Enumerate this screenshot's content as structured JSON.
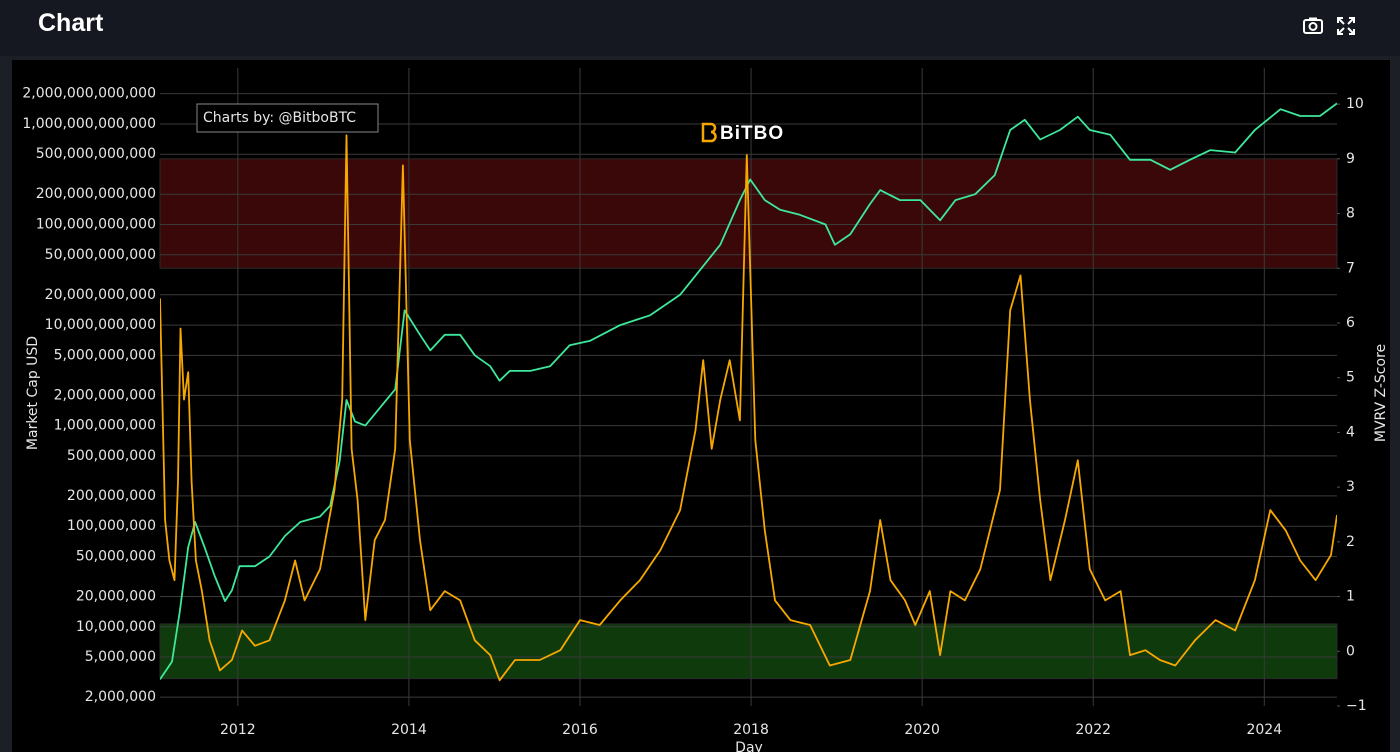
{
  "chart_data": {
    "type": "line",
    "title": "Chart",
    "xlabel": "Day",
    "ylabel": "Market Cap USD",
    "y2label": "MVRV Z-Score",
    "annotation": "Charts by: @BitboBTC",
    "watermark": "BiTBO",
    "log_y": true,
    "grid": true,
    "xlim": [
      2011.09,
      2024.85
    ],
    "xticks": [
      2012,
      2014,
      2016,
      2018,
      2020,
      2022,
      2024
    ],
    "ylim": [
      1630000,
      3600000000000
    ],
    "yticks": [
      {
        "value": 2000000,
        "label": "2,000,000"
      },
      {
        "value": 5000000,
        "label": "5,000,000"
      },
      {
        "value": 10000000,
        "label": "10,000,000"
      },
      {
        "value": 20000000,
        "label": "20,000,000"
      },
      {
        "value": 50000000,
        "label": "50,000,000"
      },
      {
        "value": 100000000,
        "label": "100,000,000"
      },
      {
        "value": 200000000,
        "label": "200,000,000"
      },
      {
        "value": 500000000,
        "label": "500,000,000"
      },
      {
        "value": 1000000000,
        "label": "1,000,000,000"
      },
      {
        "value": 2000000000,
        "label": "2,000,000,000"
      },
      {
        "value": 5000000000,
        "label": "5,000,000,000"
      },
      {
        "value": 10000000000,
        "label": "10,000,000,000"
      },
      {
        "value": 20000000000,
        "label": "20,000,000,000"
      },
      {
        "value": 50000000000,
        "label": "50,000,000,000"
      },
      {
        "value": 100000000000,
        "label": "100,000,000,000"
      },
      {
        "value": 200000000000,
        "label": "200,000,000,000"
      },
      {
        "value": 500000000000,
        "label": "500,000,000,000"
      },
      {
        "value": 1000000000000,
        "label": "1,000,000,000,000"
      },
      {
        "value": 2000000000000,
        "label": "2,000,000,000,000"
      }
    ],
    "y2lim": [
      -1,
      10.66
    ],
    "y2ticks": [
      {
        "value": -1,
        "label": "−1"
      },
      0,
      1,
      2,
      3,
      4,
      5,
      6,
      7,
      8,
      9,
      10
    ],
    "bands": [
      {
        "axis": "y2",
        "range": [
          7,
          9
        ],
        "color": "#3a0808"
      },
      {
        "axis": "y2",
        "range": [
          -0.5,
          0.5
        ],
        "color": "#0e3a0c"
      }
    ],
    "series": [
      {
        "color": "#3ee89a",
        "x": [
          2011.09,
          2011.23,
          2011.32,
          2011.42,
          2011.5,
          2011.61,
          2011.73,
          2011.85,
          2011.93,
          2012.02,
          2012.2,
          2012.37,
          2012.55,
          2012.73,
          2012.96,
          2013.08,
          2013.19,
          2013.27,
          2013.37,
          2013.49,
          2013.66,
          2013.84,
          2013.95,
          2014.13,
          2014.25,
          2014.42,
          2014.6,
          2014.77,
          2014.95,
          2015.06,
          2015.18,
          2015.42,
          2015.65,
          2015.88,
          2016.12,
          2016.47,
          2016.82,
          2017.17,
          2017.4,
          2017.64,
          2017.87,
          2017.99,
          2018.16,
          2018.34,
          2018.57,
          2018.87,
          2018.98,
          2019.16,
          2019.39,
          2019.51,
          2019.74,
          2019.98,
          2020.21,
          2020.39,
          2020.62,
          2020.85,
          2021.03,
          2021.2,
          2021.38,
          2021.61,
          2021.82,
          2021.96,
          2022.2,
          2022.43,
          2022.67,
          2022.9,
          2023.13,
          2023.37,
          2023.66,
          2023.89,
          2024.19,
          2024.42,
          2024.65,
          2024.85
        ],
        "values": [
          3000000,
          4500000,
          14000000,
          62000000,
          110000000,
          62000000,
          32000000,
          18000000,
          23000000,
          40000000,
          40000000,
          50000000,
          80000000,
          110000000,
          125000000,
          160000000,
          440000000,
          1800000000,
          1100000000,
          1000000000,
          1500000000,
          2300000000,
          14000000000,
          8000000000,
          5600000000,
          8000000000,
          8000000000,
          5000000000,
          3900000000,
          2800000000,
          3500000000,
          3500000000,
          3900000000,
          6300000000,
          7000000000,
          10000000000,
          12500000000,
          20000000000,
          35000000000,
          63000000000,
          175000000000,
          280000000000,
          175000000000,
          140000000000,
          125000000000,
          100000000000,
          63000000000,
          80000000000,
          160000000000,
          220000000000,
          175000000000,
          175000000000,
          110000000000,
          175000000000,
          200000000000,
          310000000000,
          870000000000,
          1100000000000,
          700000000000,
          870000000000,
          1180000000000,
          870000000000,
          780000000000,
          440000000000,
          440000000000,
          350000000000,
          440000000000,
          550000000000,
          520000000000,
          870000000000,
          1400000000000,
          1200000000000,
          1200000000000,
          1600000000000
        ]
      },
      {
        "color": "#f7a800",
        "axis": "y2",
        "x": [
          2011.09,
          2011.15,
          2011.2,
          2011.26,
          2011.3,
          2011.33,
          2011.37,
          2011.42,
          2011.46,
          2011.51,
          2011.58,
          2011.67,
          2011.79,
          2011.93,
          2012.05,
          2012.2,
          2012.37,
          2012.55,
          2012.67,
          2012.78,
          2012.96,
          2013.13,
          2013.22,
          2013.27,
          2013.33,
          2013.4,
          2013.49,
          2013.6,
          2013.72,
          2013.84,
          2013.93,
          2014.01,
          2014.13,
          2014.25,
          2014.42,
          2014.6,
          2014.77,
          2014.95,
          2015.06,
          2015.24,
          2015.53,
          2015.77,
          2016.0,
          2016.23,
          2016.47,
          2016.7,
          2016.94,
          2017.17,
          2017.35,
          2017.44,
          2017.54,
          2017.64,
          2017.75,
          2017.87,
          2017.95,
          2018.05,
          2018.16,
          2018.28,
          2018.46,
          2018.69,
          2018.92,
          2019.16,
          2019.39,
          2019.51,
          2019.63,
          2019.8,
          2019.92,
          2020.09,
          2020.21,
          2020.33,
          2020.5,
          2020.68,
          2020.91,
          2021.03,
          2021.15,
          2021.26,
          2021.38,
          2021.5,
          2021.67,
          2021.82,
          2021.96,
          2022.14,
          2022.32,
          2022.43,
          2022.61,
          2022.78,
          2022.96,
          2023.19,
          2023.43,
          2023.66,
          2023.89,
          2024.07,
          2024.25,
          2024.42,
          2024.6,
          2024.78,
          2024.85
        ],
        "values": [
          6.45,
          2.4,
          1.66,
          1.3,
          3.1,
          5.9,
          4.6,
          5.1,
          3.1,
          1.66,
          1.1,
          0.2,
          -0.35,
          -0.16,
          0.38,
          0.1,
          0.2,
          0.93,
          1.66,
          0.93,
          1.5,
          2.95,
          4.6,
          9.43,
          3.7,
          2.76,
          0.57,
          2.03,
          2.4,
          3.7,
          8.88,
          3.86,
          2.03,
          0.75,
          1.1,
          0.93,
          0.2,
          -0.07,
          -0.53,
          -0.16,
          -0.16,
          0.02,
          0.57,
          0.48,
          0.93,
          1.3,
          1.85,
          2.58,
          4.04,
          5.32,
          3.7,
          4.6,
          5.32,
          4.22,
          9.07,
          3.86,
          2.21,
          0.93,
          0.57,
          0.48,
          -0.26,
          -0.16,
          1.1,
          2.4,
          1.3,
          0.93,
          0.48,
          1.1,
          -0.07,
          1.1,
          0.93,
          1.5,
          2.95,
          6.23,
          6.87,
          4.6,
          2.76,
          1.3,
          2.4,
          3.49,
          1.5,
          0.93,
          1.1,
          -0.07,
          0.02,
          -0.16,
          -0.26,
          0.2,
          0.57,
          0.38,
          1.3,
          2.58,
          2.21,
          1.66,
          1.3,
          1.76,
          2.49
        ]
      }
    ]
  }
}
